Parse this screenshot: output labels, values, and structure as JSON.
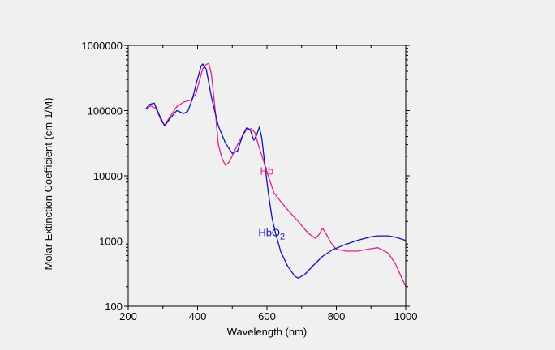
{
  "chart_data": {
    "type": "line",
    "title": "",
    "xlabel": "Wavelength (nm)",
    "ylabel": "Molar Extinction Coefficient (cm-1/M)",
    "xlim": [
      200,
      1000
    ],
    "ylim": [
      100,
      1000000
    ],
    "y_scale": "log",
    "grid": false,
    "x_ticks": [
      {
        "value": 200,
        "label": "200"
      },
      {
        "value": 400,
        "label": "400"
      },
      {
        "value": 600,
        "label": "600"
      },
      {
        "value": 800,
        "label": "800"
      },
      {
        "value": 1000,
        "label": "1000"
      }
    ],
    "y_ticks": [
      {
        "value": 100,
        "label": "100"
      },
      {
        "value": 1000,
        "label": "1000"
      },
      {
        "value": 10000,
        "label": "10000"
      },
      {
        "value": 100000,
        "label": "100000"
      },
      {
        "value": 1000000,
        "label": "1000000"
      }
    ],
    "series": [
      {
        "name": "Hb",
        "color": "#e0208c",
        "label_at": {
          "x": 580,
          "y": 10500
        },
        "points": [
          [
            250,
            105000
          ],
          [
            265,
            118000
          ],
          [
            280,
            108000
          ],
          [
            295,
            70000
          ],
          [
            305,
            60000
          ],
          [
            320,
            80000
          ],
          [
            340,
            115000
          ],
          [
            360,
            135000
          ],
          [
            380,
            145000
          ],
          [
            395,
            180000
          ],
          [
            405,
            280000
          ],
          [
            415,
            440000
          ],
          [
            425,
            510000
          ],
          [
            432,
            530000
          ],
          [
            440,
            360000
          ],
          [
            450,
            110000
          ],
          [
            460,
            30000
          ],
          [
            470,
            19000
          ],
          [
            480,
            14500
          ],
          [
            490,
            16000
          ],
          [
            505,
            23000
          ],
          [
            520,
            34000
          ],
          [
            540,
            50000
          ],
          [
            555,
            53000
          ],
          [
            565,
            46000
          ],
          [
            575,
            30000
          ],
          [
            590,
            17000
          ],
          [
            605,
            9500
          ],
          [
            620,
            5500
          ],
          [
            640,
            4000
          ],
          [
            660,
            3000
          ],
          [
            690,
            2000
          ],
          [
            720,
            1300
          ],
          [
            740,
            1100
          ],
          [
            752,
            1300
          ],
          [
            760,
            1580
          ],
          [
            770,
            1300
          ],
          [
            785,
            930
          ],
          [
            800,
            750
          ],
          [
            830,
            700
          ],
          [
            860,
            700
          ],
          [
            890,
            750
          ],
          [
            920,
            790
          ],
          [
            950,
            650
          ],
          [
            970,
            450
          ],
          [
            985,
            300
          ],
          [
            1000,
            200
          ]
        ]
      },
      {
        "name": "HbO2",
        "label_main": "HbO",
        "label_sub": "2",
        "color": "#1010b8",
        "label_at": {
          "x": 575,
          "y": 1180
        },
        "points": [
          [
            250,
            105000
          ],
          [
            262,
            125000
          ],
          [
            275,
            130000
          ],
          [
            290,
            85000
          ],
          [
            305,
            58000
          ],
          [
            320,
            75000
          ],
          [
            340,
            100000
          ],
          [
            360,
            90000
          ],
          [
            372,
            98000
          ],
          [
            385,
            150000
          ],
          [
            398,
            280000
          ],
          [
            410,
            480000
          ],
          [
            415,
            520000
          ],
          [
            425,
            430000
          ],
          [
            440,
            160000
          ],
          [
            460,
            58000
          ],
          [
            480,
            32000
          ],
          [
            500,
            22000
          ],
          [
            515,
            24000
          ],
          [
            530,
            42000
          ],
          [
            542,
            55000
          ],
          [
            552,
            50000
          ],
          [
            562,
            35000
          ],
          [
            570,
            42000
          ],
          [
            578,
            56000
          ],
          [
            585,
            38000
          ],
          [
            595,
            13000
          ],
          [
            605,
            5000
          ],
          [
            615,
            2200
          ],
          [
            625,
            1300
          ],
          [
            640,
            680
          ],
          [
            660,
            410
          ],
          [
            680,
            290
          ],
          [
            690,
            270
          ],
          [
            710,
            310
          ],
          [
            735,
            430
          ],
          [
            760,
            580
          ],
          [
            790,
            740
          ],
          [
            820,
            860
          ],
          [
            860,
            1020
          ],
          [
            900,
            1160
          ],
          [
            920,
            1200
          ],
          [
            950,
            1200
          ],
          [
            975,
            1130
          ],
          [
            1000,
            1020
          ]
        ]
      }
    ]
  }
}
